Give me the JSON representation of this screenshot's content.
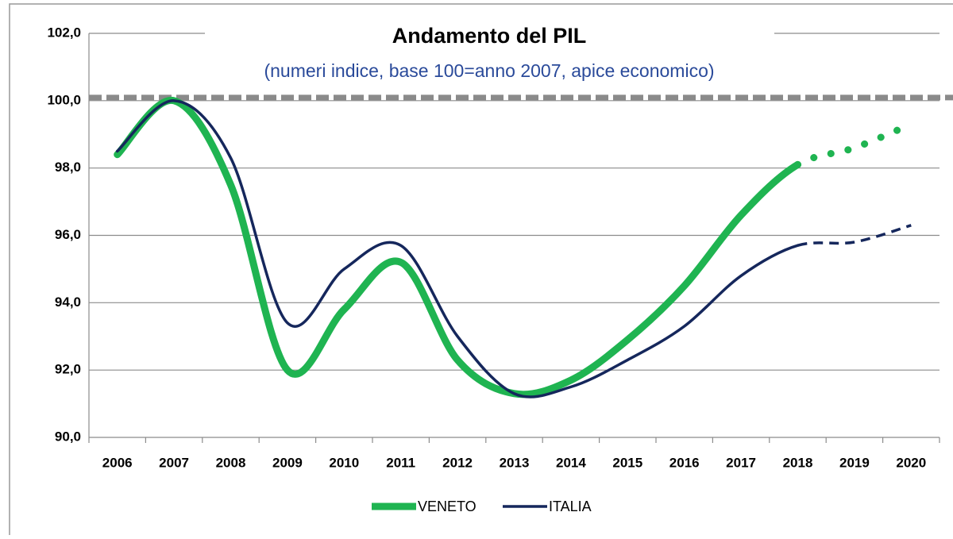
{
  "chart_data": {
    "type": "line",
    "title": "Andamento del PIL",
    "subtitle": "(numeri indice, base 100=anno 2007, apice economico)",
    "categories": [
      "2006",
      "2007",
      "2008",
      "2009",
      "2010",
      "2011",
      "2012",
      "2013",
      "2014",
      "2015",
      "2016",
      "2017",
      "2018",
      "2019",
      "2020"
    ],
    "series": [
      {
        "name": "VENETO",
        "color": "#1fb451",
        "width": 9,
        "projection_style": "dotted",
        "values": [
          98.4,
          100.0,
          97.5,
          92.0,
          93.8,
          95.2,
          92.3,
          91.3,
          91.7,
          92.9,
          94.5,
          96.6,
          98.1,
          98.6,
          99.3
        ]
      },
      {
        "name": "ITALIA",
        "color": "#15275c",
        "width": 3.5,
        "projection_style": "dashed",
        "values": [
          98.5,
          100.0,
          98.3,
          93.4,
          95.0,
          95.7,
          93.0,
          91.3,
          91.5,
          92.3,
          93.3,
          94.8,
          95.7,
          95.8,
          96.3
        ]
      }
    ],
    "projection_from": "2018",
    "reference_line": 100,
    "ylim": [
      90,
      102
    ],
    "yticks": [
      {
        "value": 90,
        "label": "90,0"
      },
      {
        "value": 92,
        "label": "92,0"
      },
      {
        "value": 94,
        "label": "94,0"
      },
      {
        "value": 96,
        "label": "96,0"
      },
      {
        "value": 98,
        "label": "98,0"
      },
      {
        "value": 100,
        "label": "100,0"
      },
      {
        "value": 102,
        "label": "102,0"
      }
    ],
    "grid": true,
    "legend": "bottom"
  }
}
